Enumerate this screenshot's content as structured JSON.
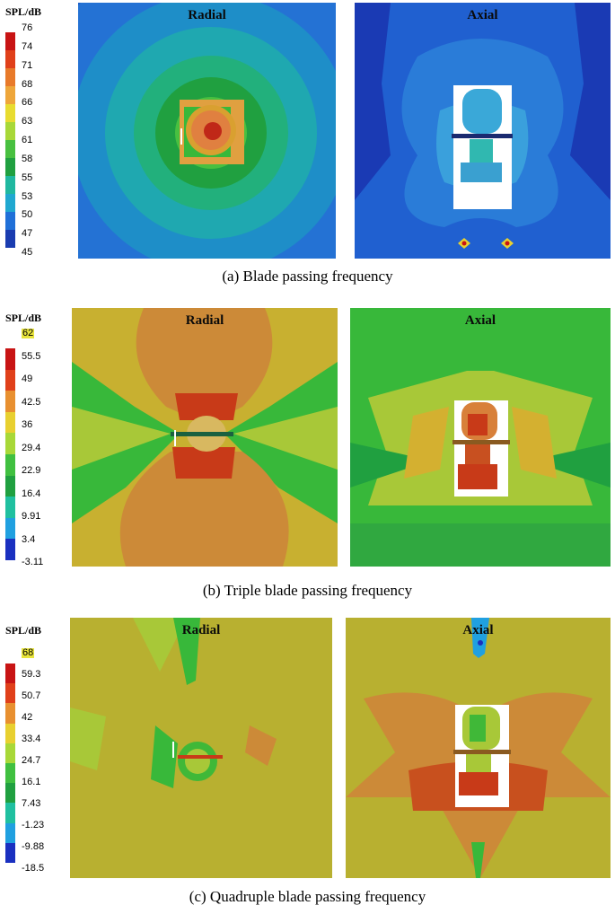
{
  "panels": [
    {
      "id": "a",
      "legend_title": "SPL/dB",
      "legend_values": [
        "76",
        "74",
        "71",
        "68",
        "66",
        "63",
        "61",
        "58",
        "55",
        "53",
        "50",
        "47",
        "45"
      ],
      "legend_colors": [
        "#c81414",
        "#e0401a",
        "#e87a2a",
        "#eea63a",
        "#e8dc30",
        "#a8d838",
        "#48c040",
        "#20a040",
        "#20b8a0",
        "#20a8d0",
        "#2070d8",
        "#1a3cb0"
      ],
      "highlight_first": false,
      "radial_title": "Radial",
      "axial_title": "Axial",
      "caption": "(a) Blade passing frequency"
    },
    {
      "id": "b",
      "legend_title": "SPL/dB",
      "legend_values": [
        "62",
        "55.5",
        "49",
        "42.5",
        "36",
        "29.4",
        "22.9",
        "16.4",
        "9.91",
        "3.4",
        "-3.11"
      ],
      "legend_colors": [
        "#c81414",
        "#e0401a",
        "#e89030",
        "#e8d030",
        "#a8d838",
        "#40c040",
        "#20a040",
        "#20c0a0",
        "#20a0e0",
        "#1a30c0"
      ],
      "highlight_first": true,
      "radial_title": "Radial",
      "axial_title": "Axial",
      "caption": "(b) Triple blade passing frequency"
    },
    {
      "id": "c",
      "legend_title": "SPL/dB",
      "legend_values": [
        "68",
        "59.3",
        "50.7",
        "42",
        "33.4",
        "24.7",
        "16.1",
        "7.43",
        "-1.23",
        "-9.88",
        "-18.5"
      ],
      "legend_colors": [
        "#c81414",
        "#e0401a",
        "#e89030",
        "#e8d030",
        "#a8d838",
        "#40c040",
        "#20a040",
        "#20c0a0",
        "#20a0e0",
        "#1a30c0"
      ],
      "highlight_first": true,
      "radial_title": "Radial",
      "axial_title": "Axial",
      "caption": "(c) Quadruple blade passing frequency"
    }
  ]
}
